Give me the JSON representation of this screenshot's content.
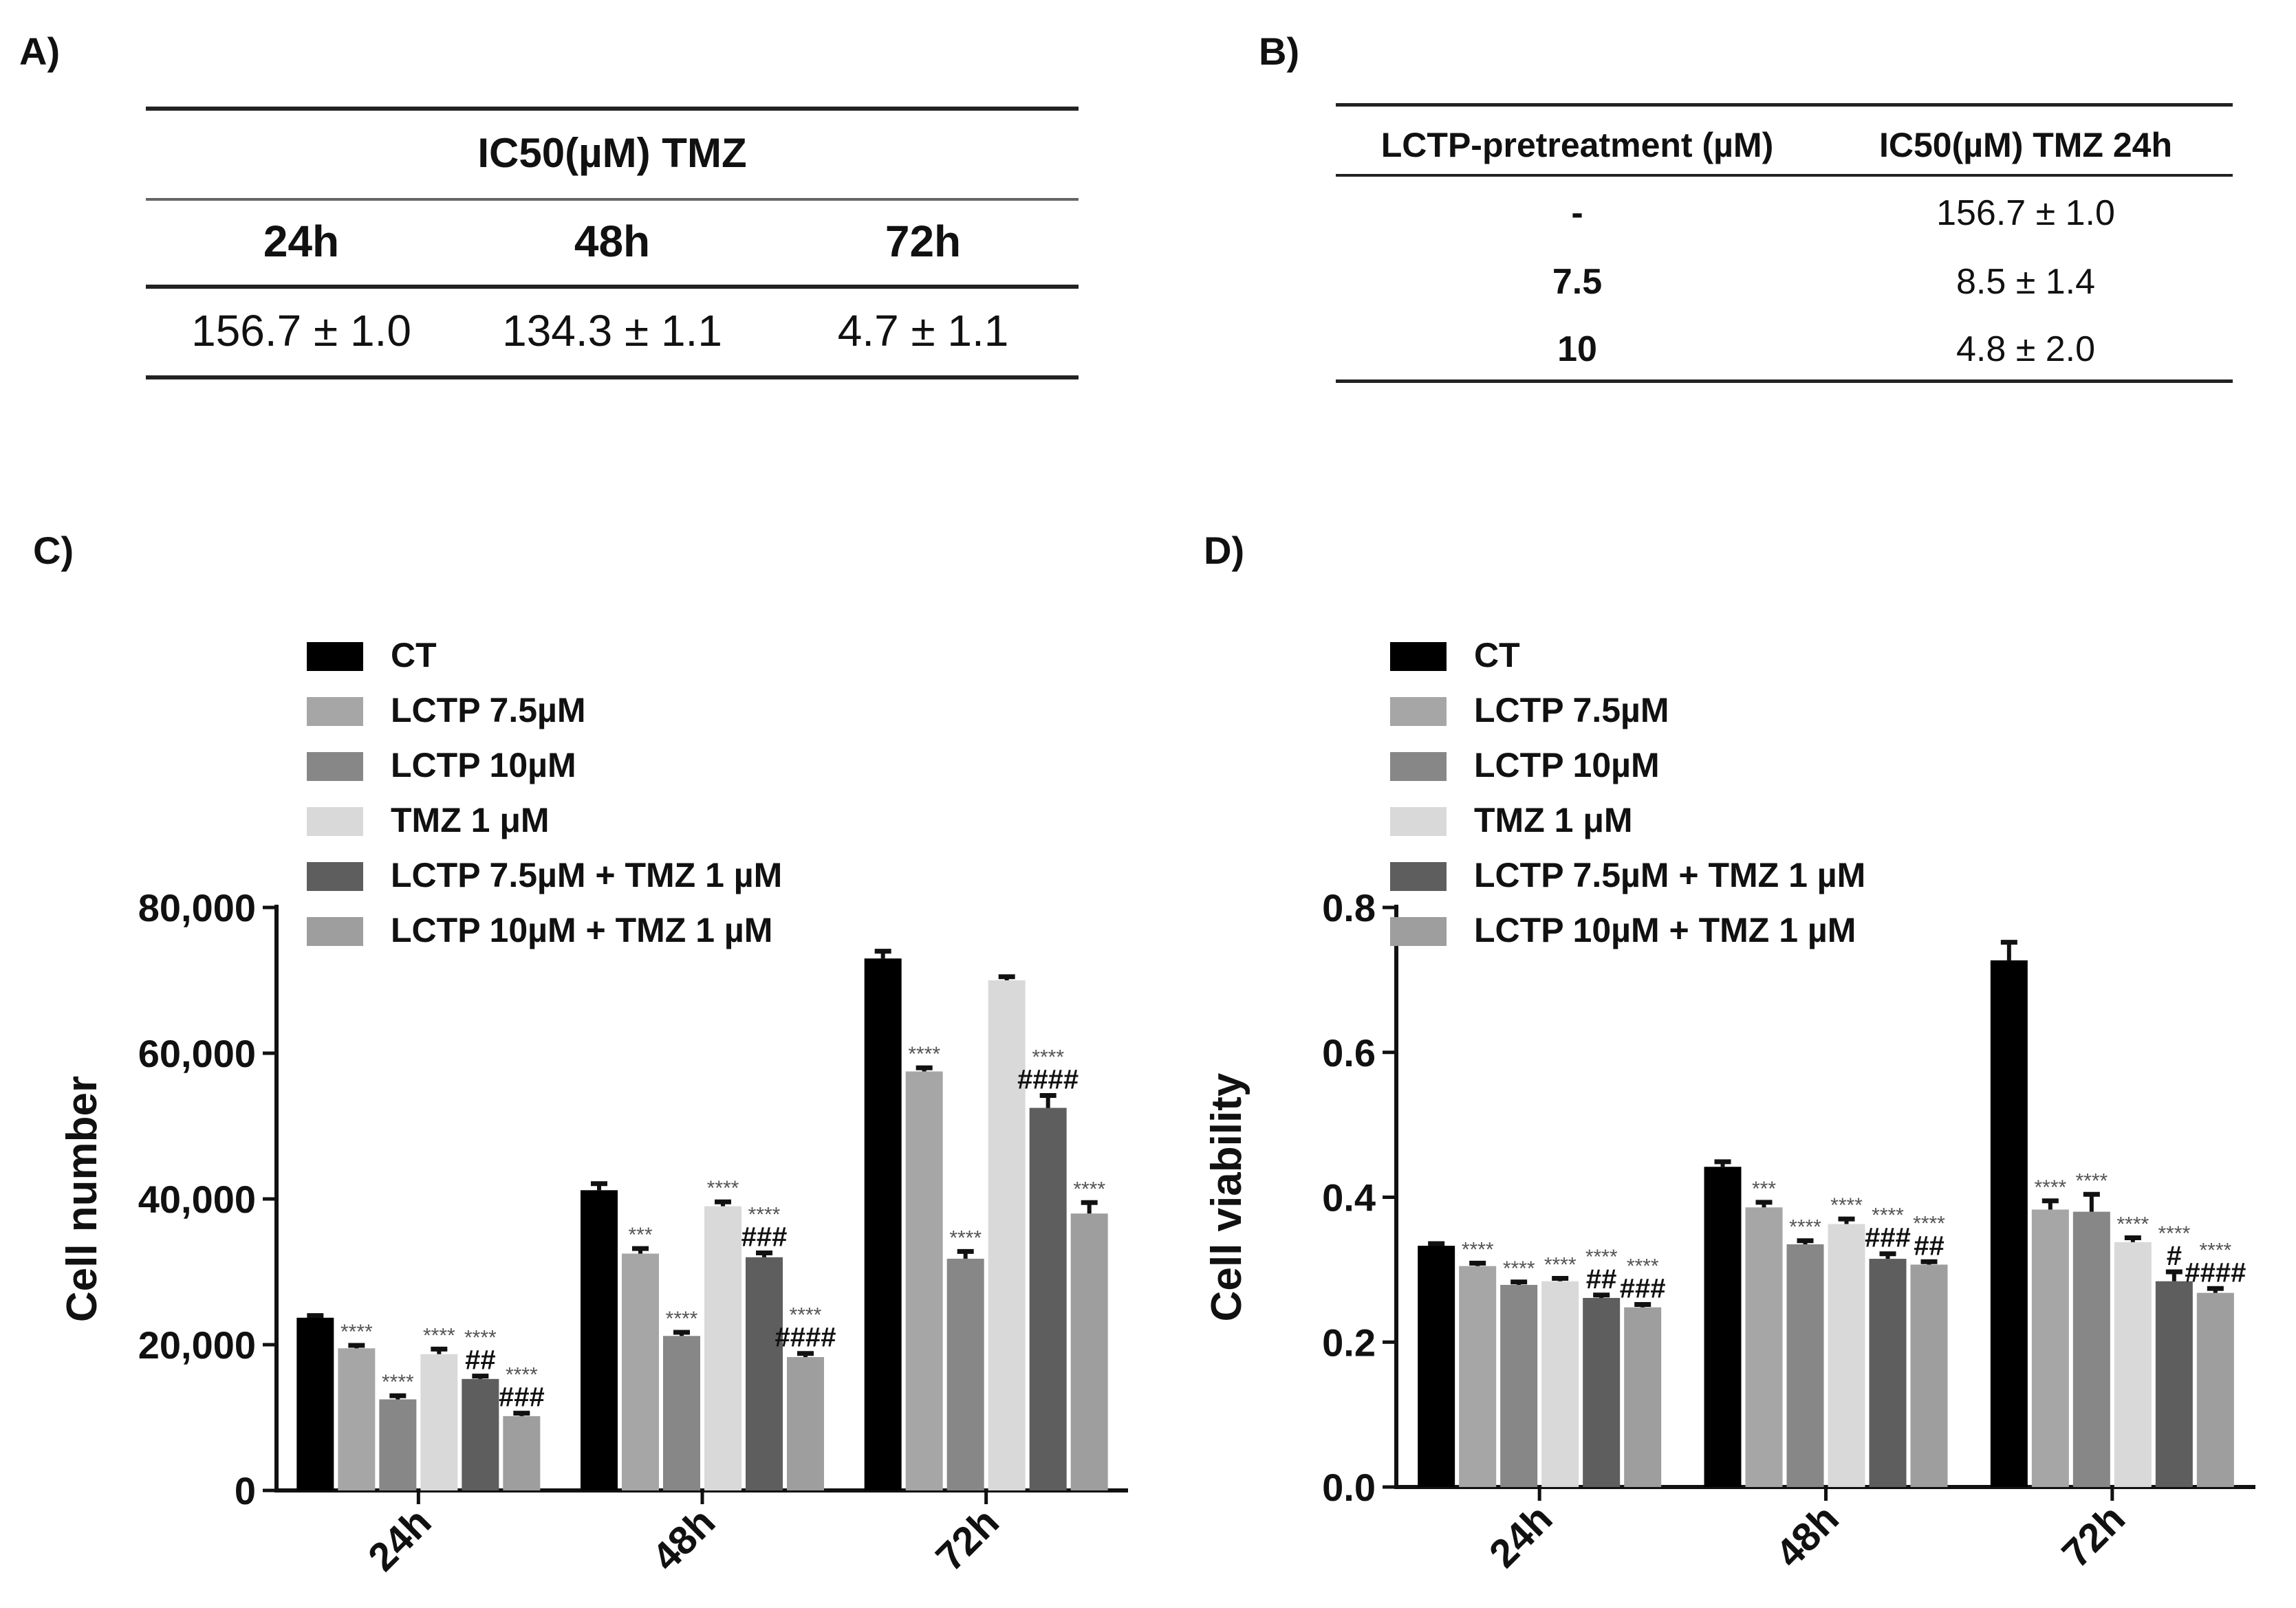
{
  "panel_labels": {
    "a": "A)",
    "b": "B)",
    "c": "C)",
    "d": "D)"
  },
  "table_a": {
    "title": "IC50(µM) TMZ",
    "columns": [
      "24h",
      "48h",
      "72h"
    ],
    "values": [
      "156.7 ± 1.0",
      "134.3 ± 1.1",
      "4.7 ± 1.1"
    ]
  },
  "table_b": {
    "headers": [
      "LCTP-pretreatment (µM)",
      "IC50(µM) TMZ 24h"
    ],
    "rows": [
      [
        "-",
        "156.7 ± 1.0"
      ],
      [
        "7.5",
        "8.5 ± 1.4"
      ],
      [
        "10",
        "4.8 ± 2.0"
      ]
    ]
  },
  "chart_data": [
    {
      "type": "bar",
      "panel": "C)",
      "ylabel": "Cell number",
      "xlabel": "",
      "ylim": [
        0,
        80000
      ],
      "yticks": [
        0,
        20000,
        40000,
        60000,
        80000
      ],
      "ytick_labels": [
        "0",
        "20,000",
        "40,000",
        "60,000",
        "80,000"
      ],
      "categories": [
        "24h",
        "48h",
        "72h"
      ],
      "legend_position": "top-left",
      "series": [
        {
          "name": "CT",
          "color": "#000000",
          "values": [
            23700,
            41200,
            73000
          ],
          "errors": [
            300,
            900,
            1000
          ],
          "annotations": [
            "",
            "",
            ""
          ]
        },
        {
          "name": "LCTP 7.5µM",
          "color": "#a6a6a6",
          "values": [
            19500,
            32500,
            57500
          ],
          "errors": [
            400,
            700,
            500
          ],
          "annotations": [
            "****",
            "***",
            "****"
          ]
        },
        {
          "name": "LCTP 10µM",
          "color": "#878787",
          "values": [
            12500,
            21200,
            31800
          ],
          "errors": [
            500,
            500,
            1000
          ],
          "annotations": [
            "****",
            "****",
            "****"
          ]
        },
        {
          "name": "TMZ 1 μM",
          "color": "#d9d9d9",
          "values": [
            18700,
            39000,
            70000
          ],
          "errors": [
            700,
            600,
            500
          ],
          "annotations": [
            "****",
            "****",
            ""
          ]
        },
        {
          "name": "LCTP 7.5µM + TMZ 1 µM",
          "color": "#5e5e5e",
          "values": [
            15300,
            32000,
            52500
          ],
          "errors": [
            400,
            600,
            1700
          ],
          "annotations": [
            "****\n##",
            "****\n###",
            "****\n####"
          ]
        },
        {
          "name": "LCTP 10µM + TMZ 1 µM",
          "color": "#9e9e9e",
          "values": [
            10200,
            18300,
            38000
          ],
          "errors": [
            400,
            500,
            1500
          ],
          "annotations": [
            "****\n###",
            "****\n####",
            "****"
          ]
        }
      ]
    },
    {
      "type": "bar",
      "panel": "D)",
      "ylabel": "Cell viability",
      "xlabel": "",
      "ylim": [
        0,
        0.8
      ],
      "yticks": [
        0,
        0.2,
        0.4,
        0.6,
        0.8
      ],
      "ytick_labels": [
        "0.0",
        "0.2",
        "0.4",
        "0.6",
        "0.8"
      ],
      "categories": [
        "24h",
        "48h",
        "72h"
      ],
      "legend_position": "top-left",
      "series": [
        {
          "name": "CT",
          "color": "#000000",
          "values": [
            0.333,
            0.442,
            0.727
          ],
          "errors": [
            0.003,
            0.007,
            0.025
          ],
          "annotations": [
            "",
            "",
            ""
          ]
        },
        {
          "name": "LCTP 7.5µM",
          "color": "#a6a6a6",
          "values": [
            0.305,
            0.386,
            0.383
          ],
          "errors": [
            0.004,
            0.007,
            0.012
          ],
          "annotations": [
            "****",
            "***",
            "****"
          ]
        },
        {
          "name": "LCTP 10µM",
          "color": "#878787",
          "values": [
            0.279,
            0.335,
            0.38
          ],
          "errors": [
            0.004,
            0.005,
            0.024
          ],
          "annotations": [
            "****",
            "****",
            "****"
          ]
        },
        {
          "name": "TMZ 1 μM",
          "color": "#d9d9d9",
          "values": [
            0.284,
            0.363,
            0.338
          ],
          "errors": [
            0.004,
            0.007,
            0.006
          ],
          "annotations": [
            "****",
            "****",
            "****"
          ]
        },
        {
          "name": "LCTP 7.5µM + TMZ 1 µM",
          "color": "#5e5e5e",
          "values": [
            0.261,
            0.315,
            0.284
          ],
          "errors": [
            0.004,
            0.007,
            0.013
          ],
          "annotations": [
            "****\n##",
            "****\n###",
            "****\n#"
          ]
        },
        {
          "name": "LCTP 10µM + TMZ 1 µM",
          "color": "#9e9e9e",
          "values": [
            0.248,
            0.307,
            0.268
          ],
          "errors": [
            0.004,
            0.004,
            0.006
          ],
          "annotations": [
            "****\n###",
            "****\n##",
            "****\n####"
          ]
        }
      ]
    }
  ]
}
